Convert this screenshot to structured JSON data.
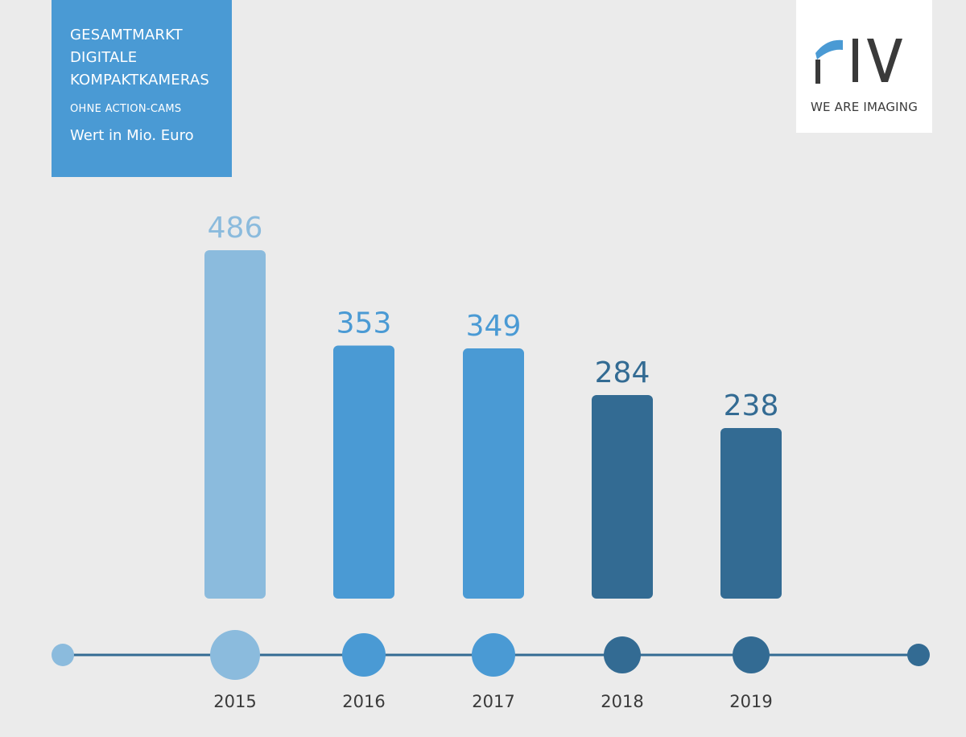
{
  "header": {
    "title_lines": [
      "GESAMTMARKT",
      "DIGITALE",
      "KOMPAKTKAMERAS"
    ],
    "subtitle": "OHNE ACTION-CAMS",
    "unit": "Wert in Mio. Euro"
  },
  "logo": {
    "text": "PIV",
    "tagline": "WE ARE IMAGING"
  },
  "colors": {
    "light": "#8bbbdd",
    "medium": "#4a9ad4",
    "dark": "#336b93",
    "axis": "#336b93"
  },
  "chart_data": {
    "type": "bar",
    "categories": [
      "2015",
      "2016",
      "2017",
      "2018",
      "2019"
    ],
    "values": [
      486,
      353,
      349,
      284,
      238
    ],
    "data_labels": [
      "486",
      "353",
      "349",
      "284",
      "238"
    ],
    "bar_colors": [
      "#8bbbdd",
      "#4a9ad4",
      "#4a9ad4",
      "#336b93",
      "#336b93"
    ],
    "ylim": [
      0,
      486
    ],
    "grid": false,
    "legend": "none"
  }
}
